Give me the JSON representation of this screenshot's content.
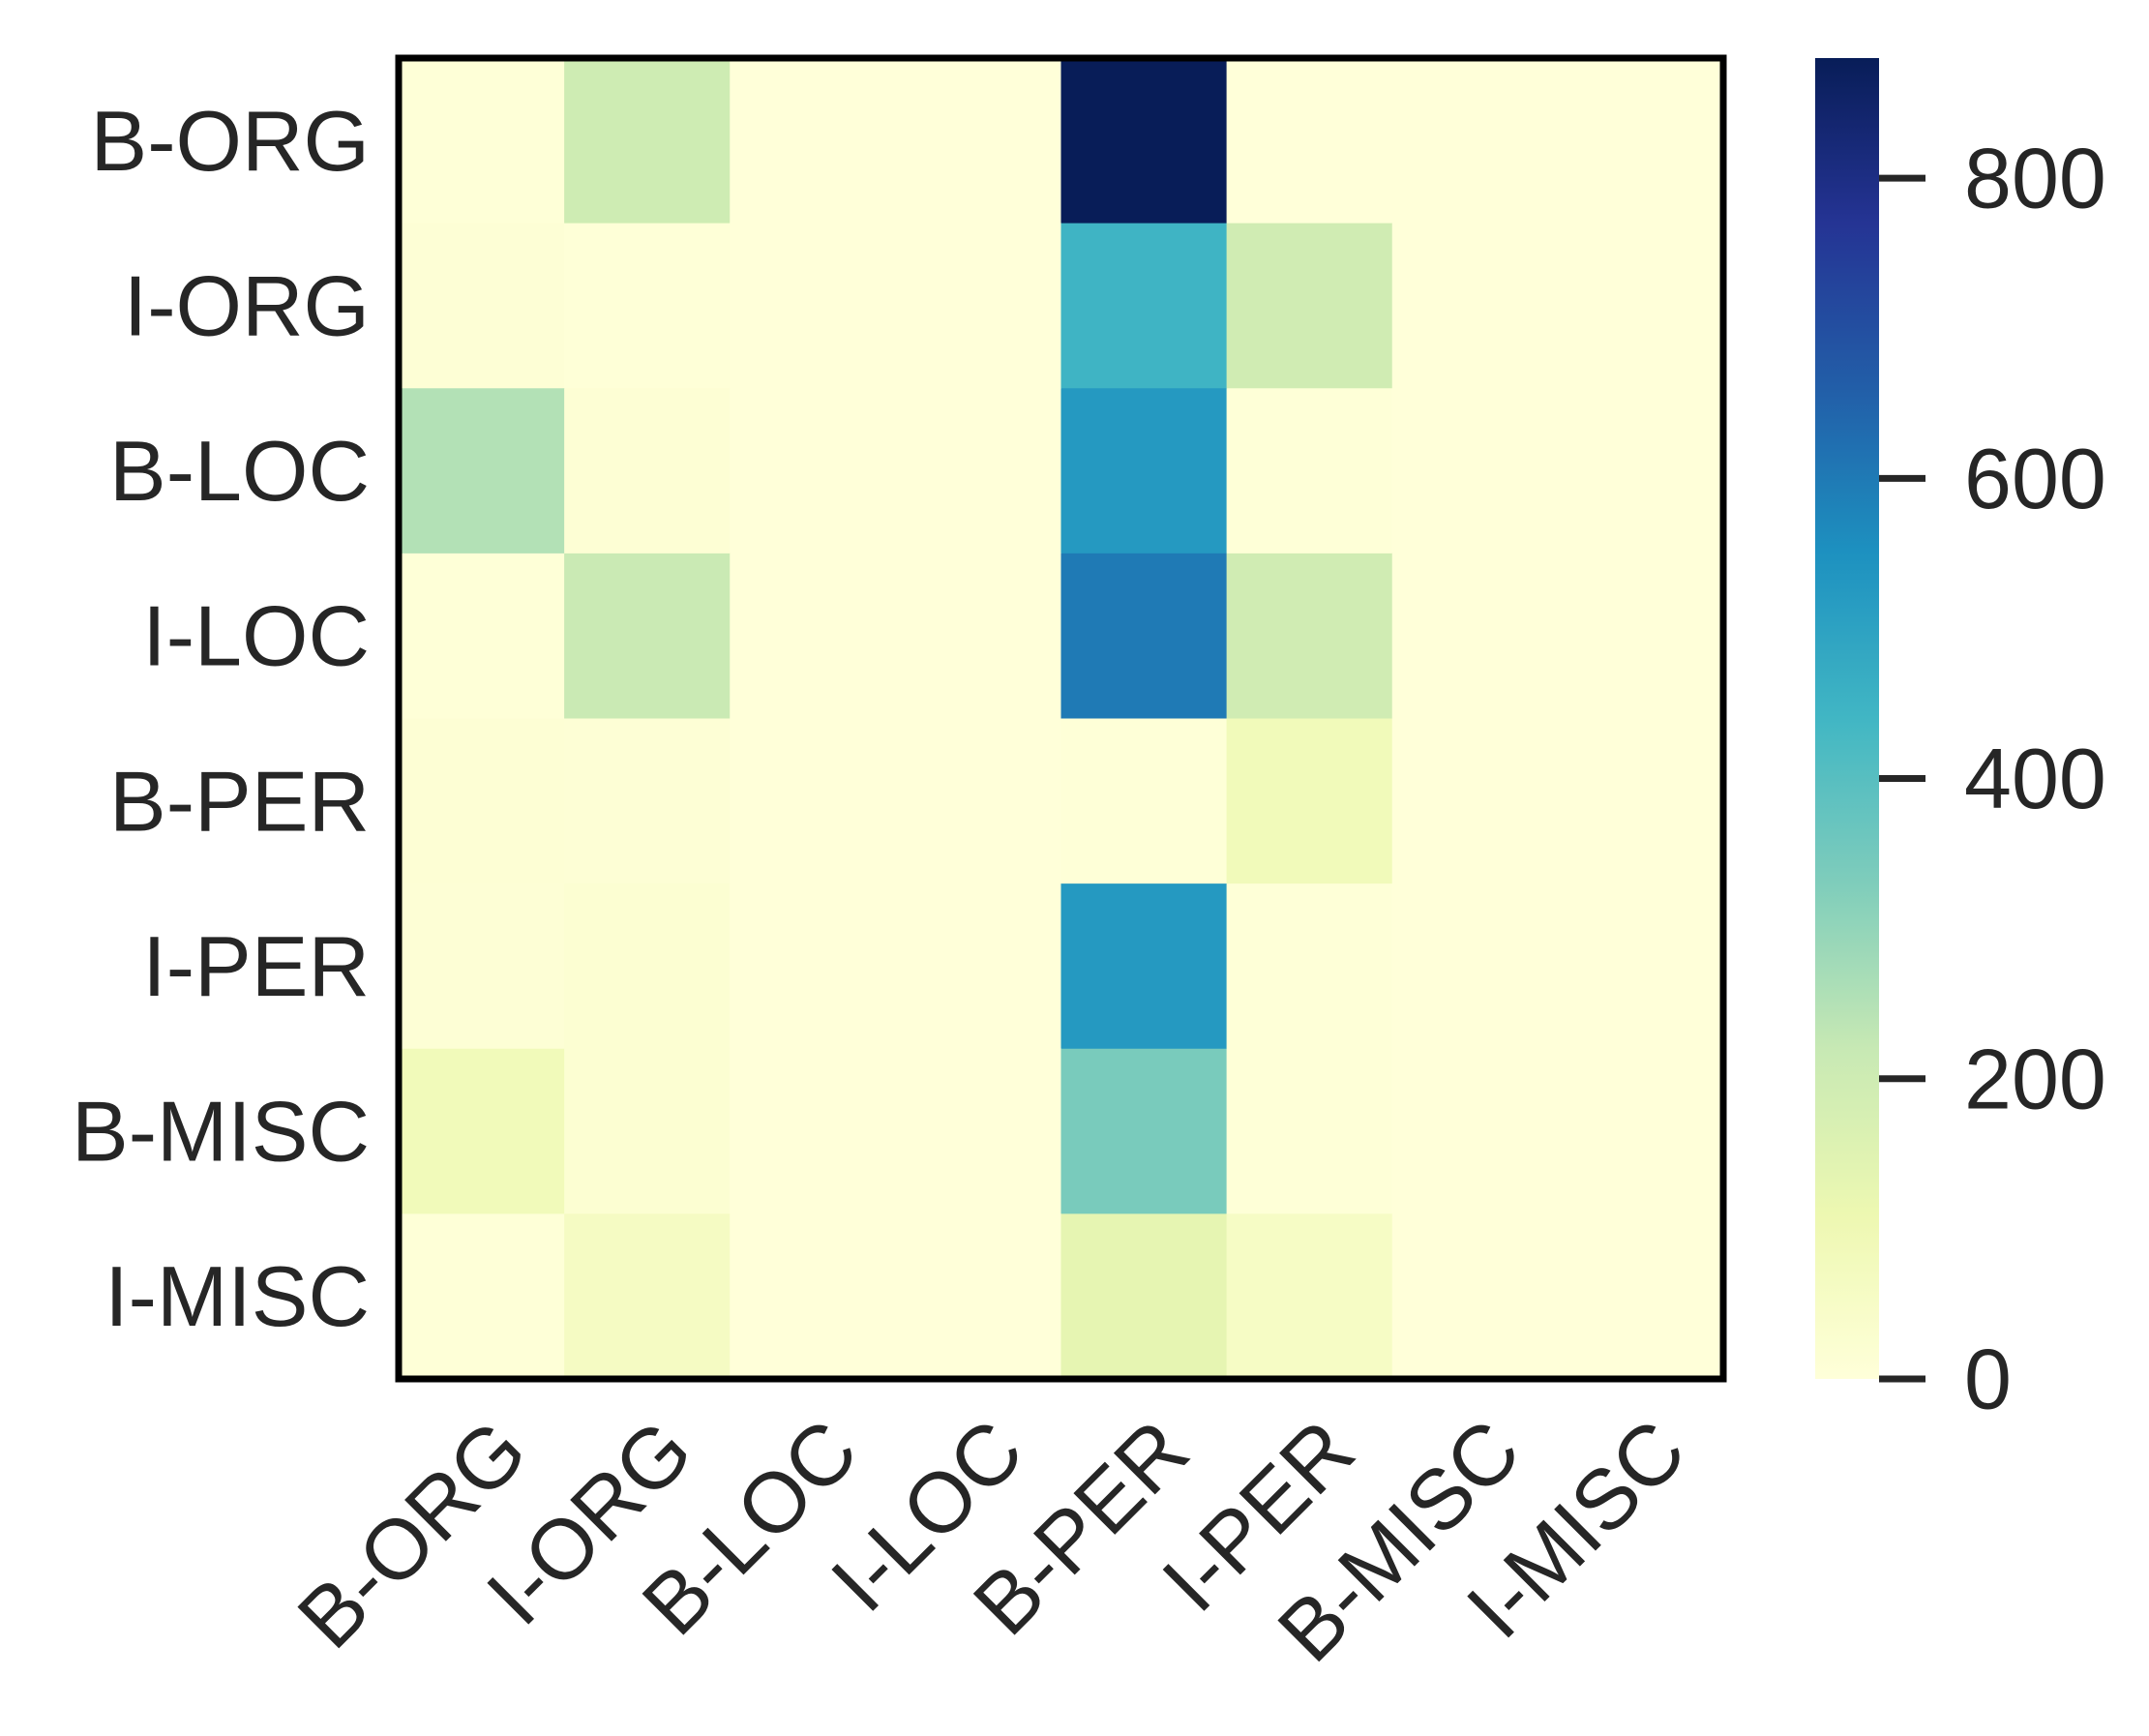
{
  "chart_data": {
    "type": "heatmap",
    "x_categories": [
      "B-ORG",
      "I-ORG",
      "B-LOC",
      "I-LOC",
      "B-PER",
      "I-PER",
      "B-MISC",
      "I-MISC"
    ],
    "y_categories": [
      "B-ORG",
      "I-ORG",
      "B-LOC",
      "I-LOC",
      "B-PER",
      "I-PER",
      "B-MISC",
      "I-MISC"
    ],
    "values": [
      [
        5,
        200,
        0,
        0,
        880,
        0,
        0,
        0
      ],
      [
        10,
        5,
        0,
        0,
        445,
        195,
        0,
        0
      ],
      [
        250,
        15,
        0,
        0,
        525,
        5,
        0,
        0
      ],
      [
        5,
        210,
        0,
        0,
        600,
        195,
        0,
        0
      ],
      [
        15,
        10,
        0,
        0,
        5,
        85,
        0,
        0
      ],
      [
        10,
        20,
        0,
        0,
        525,
        5,
        0,
        0
      ],
      [
        85,
        20,
        0,
        0,
        340,
        5,
        0,
        0
      ],
      [
        5,
        60,
        0,
        0,
        130,
        55,
        0,
        0
      ]
    ],
    "colormap": "YlGnBu",
    "colorbar": {
      "range": [
        0,
        880
      ],
      "ticks": [
        0,
        200,
        400,
        600,
        800
      ]
    },
    "x_tick_rotation_deg": 45,
    "grid": false,
    "legend": "colorbar-right",
    "title": "",
    "xlabel": "",
    "ylabel": ""
  }
}
